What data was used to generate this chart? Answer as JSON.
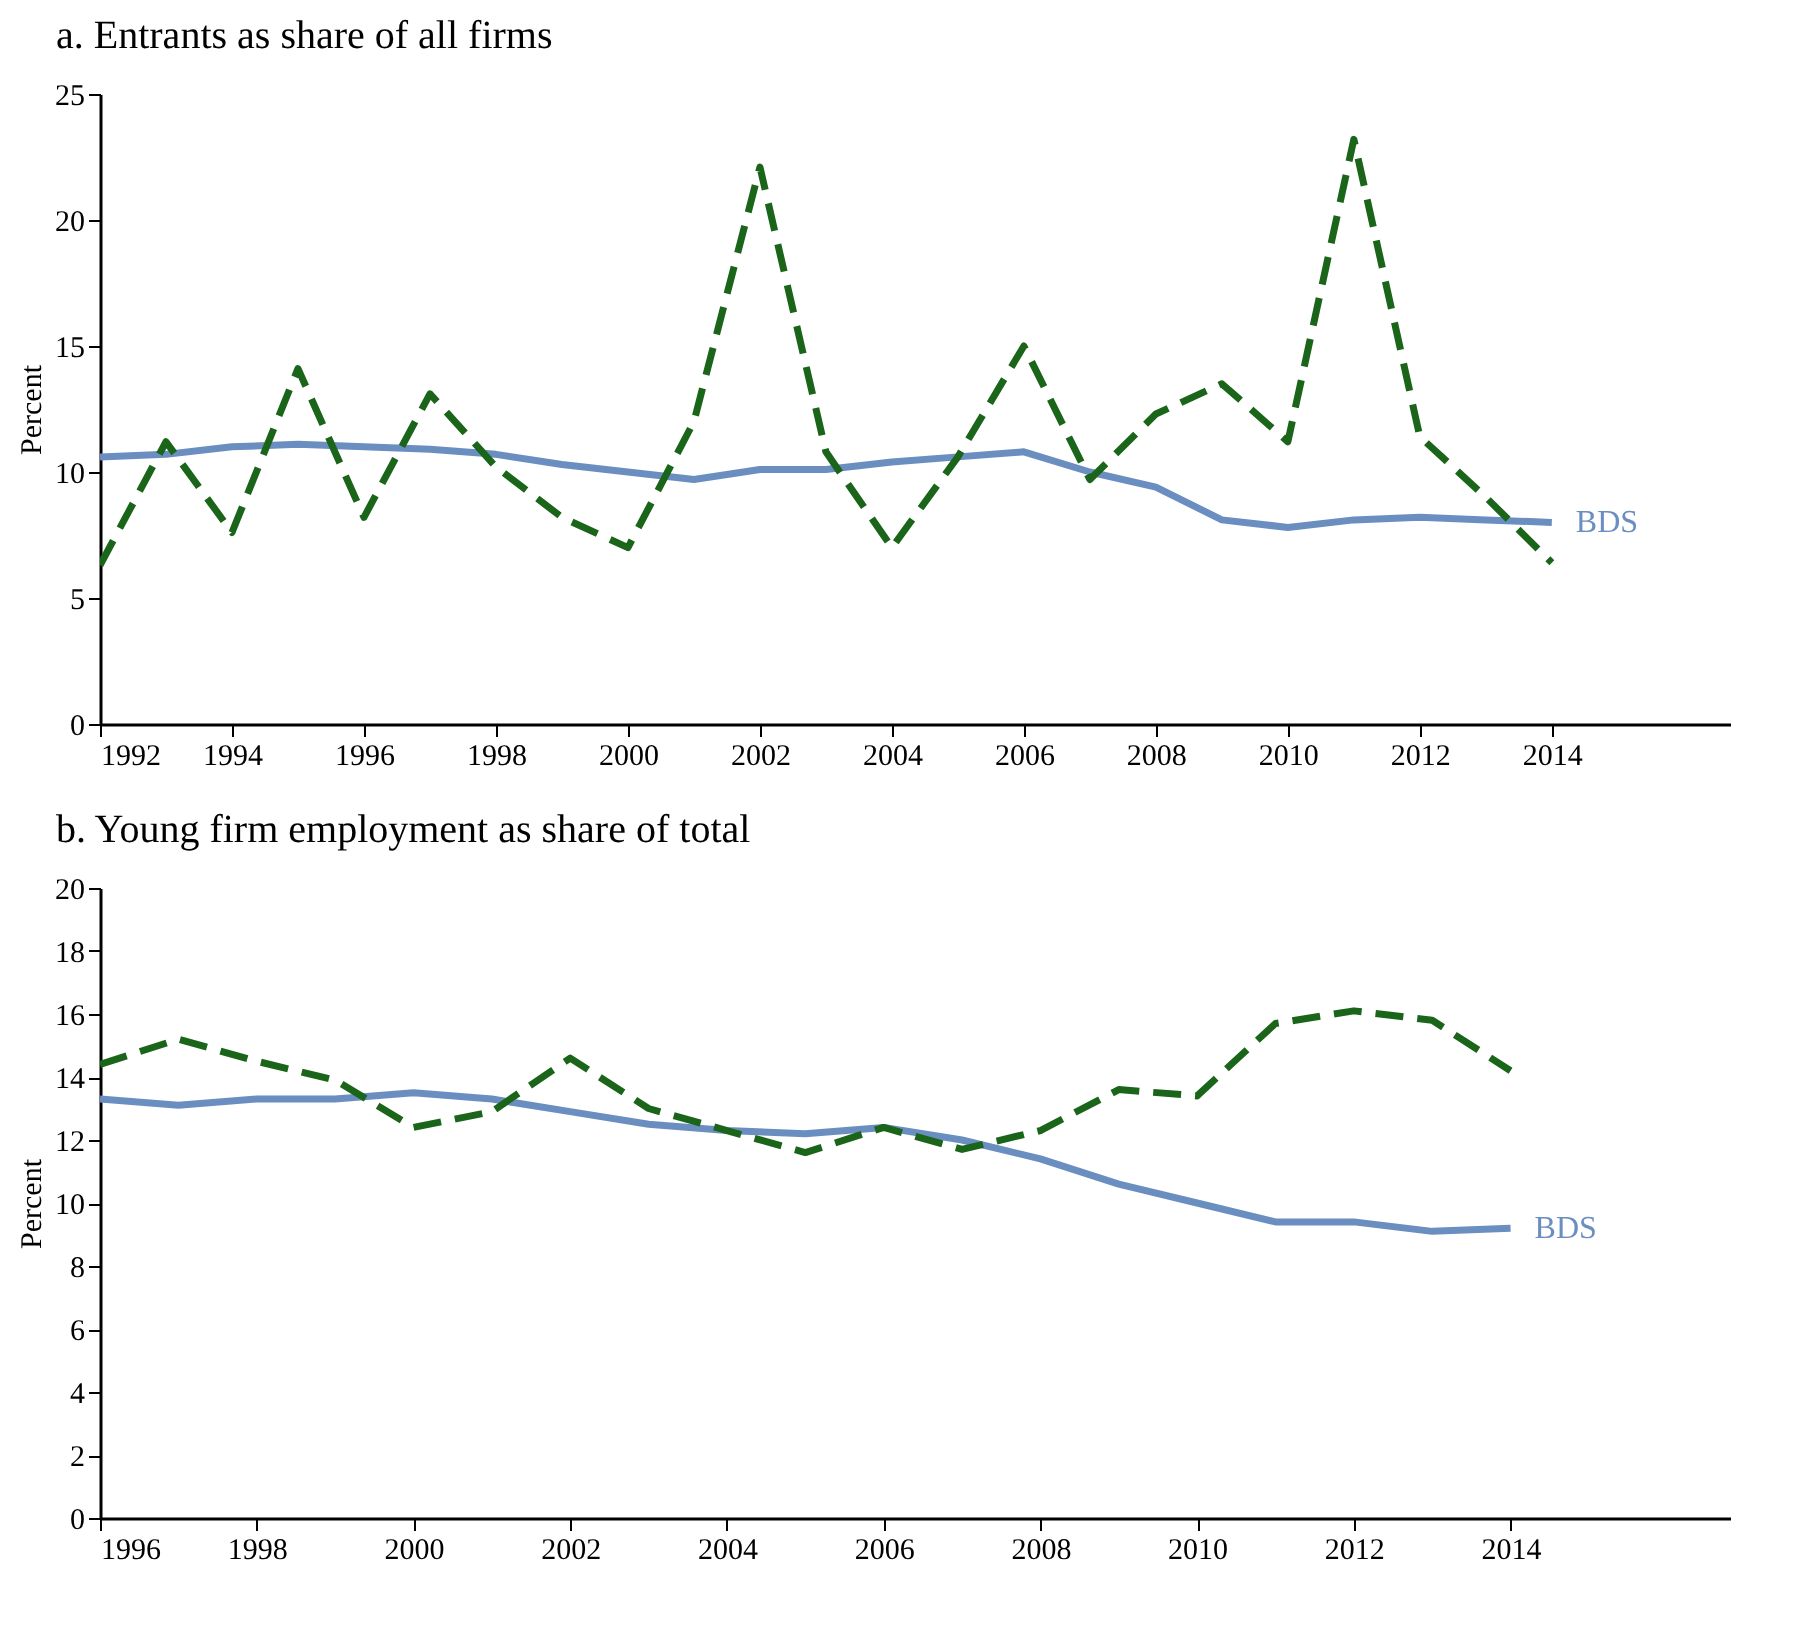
{
  "chart_data": [
    {
      "type": "line",
      "title": "a. Entrants as share of all firms",
      "ylabel": "Percent",
      "x": [
        1992,
        1993,
        1994,
        1995,
        1996,
        1997,
        1998,
        1999,
        2000,
        2001,
        2002,
        2003,
        2004,
        2005,
        2006,
        2007,
        2008,
        2009,
        2010,
        2011,
        2012,
        2013,
        2014
      ],
      "xlim": [
        1992,
        2016.7
      ],
      "xticks": [
        1992,
        1994,
        1996,
        1998,
        2000,
        2002,
        2004,
        2006,
        2008,
        2010,
        2012,
        2014
      ],
      "ylim": [
        0,
        25
      ],
      "yticks": [
        0,
        5,
        10,
        15,
        20,
        25
      ],
      "grid": false,
      "legend": false,
      "series": [
        {
          "name": "BDS",
          "color": "#6a8ec0",
          "line_style": "solid",
          "values": [
            10.6,
            10.7,
            11.0,
            11.1,
            11.0,
            10.9,
            10.7,
            10.3,
            10.0,
            9.7,
            10.1,
            10.1,
            10.4,
            10.6,
            10.8,
            10.0,
            9.4,
            8.1,
            7.8,
            8.1,
            8.2,
            8.1,
            8.0
          ]
        },
        {
          "color": "#1a651a",
          "line_style": "dashed",
          "values": [
            6.3,
            11.2,
            7.6,
            14.1,
            8.2,
            13.1,
            10.2,
            8.2,
            7.0,
            12.0,
            22.1,
            10.8,
            7.0,
            10.6,
            15.0,
            9.7,
            12.3,
            13.5,
            11.2,
            23.2,
            11.4,
            9.0,
            6.4
          ]
        }
      ]
    },
    {
      "type": "line",
      "title": "b. Young firm employment as share of total",
      "ylabel": "Percent",
      "x": [
        1996,
        1997,
        1998,
        1999,
        2000,
        2001,
        2002,
        2003,
        2004,
        2005,
        2006,
        2007,
        2008,
        2009,
        2010,
        2011,
        2012,
        2013,
        2014
      ],
      "xlim": [
        1996,
        2016.8
      ],
      "xticks": [
        1996,
        1998,
        2000,
        2002,
        2004,
        2006,
        2008,
        2010,
        2012,
        2014
      ],
      "ylim": [
        0,
        20
      ],
      "yticks": [
        0,
        2,
        4,
        6,
        8,
        10,
        12,
        14,
        16,
        18,
        20
      ],
      "grid": false,
      "legend": false,
      "series": [
        {
          "name": "BDS",
          "color": "#6a8ec0",
          "line_style": "solid",
          "values": [
            13.3,
            13.1,
            13.3,
            13.3,
            13.5,
            13.3,
            12.9,
            12.5,
            12.3,
            12.2,
            12.4,
            12.0,
            11.4,
            10.6,
            10.0,
            9.4,
            9.4,
            9.1,
            9.2
          ]
        },
        {
          "color": "#1a651a",
          "line_style": "dashed",
          "values": [
            14.4,
            15.2,
            14.5,
            13.9,
            12.4,
            12.9,
            14.6,
            13.0,
            12.3,
            11.6,
            12.4,
            11.7,
            12.3,
            13.6,
            13.4,
            15.7,
            16.1,
            15.8,
            14.2
          ]
        }
      ]
    }
  ]
}
